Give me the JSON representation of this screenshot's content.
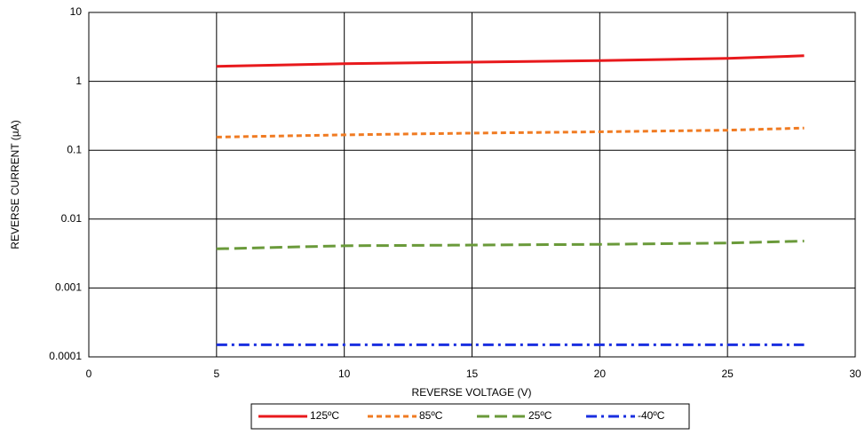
{
  "chart_data": {
    "type": "line",
    "xlabel": "REVERSE VOLTAGE (V)",
    "ylabel": "REVERSE CURRENT (µA)",
    "x": [
      5,
      10,
      15,
      20,
      25,
      28
    ],
    "series": [
      {
        "name": "125ºC",
        "color": "#e8191c",
        "dash": "solid",
        "values": [
          1.65,
          1.8,
          1.9,
          2.0,
          2.15,
          2.35
        ]
      },
      {
        "name": "85ºC",
        "color": "#f07b22",
        "dash": "short",
        "values": [
          0.155,
          0.167,
          0.177,
          0.185,
          0.195,
          0.21
        ]
      },
      {
        "name": "25ºC",
        "color": "#6a9a3a",
        "dash": "long",
        "values": [
          0.0037,
          0.0041,
          0.0042,
          0.0043,
          0.0045,
          0.0048
        ]
      },
      {
        "name": "-40ºC",
        "color": "#1a2fe0",
        "dash": "dashdot",
        "values": [
          0.00015,
          0.00015,
          0.00015,
          0.00015,
          0.00015,
          0.00015
        ]
      }
    ],
    "xlim": [
      0,
      30
    ],
    "xticks": [
      0,
      5,
      10,
      15,
      20,
      25,
      30
    ],
    "ylim": [
      0.0001,
      10
    ],
    "yticks": [
      0.0001,
      0.001,
      0.01,
      0.1,
      1,
      10
    ],
    "ylog": true,
    "grid": true,
    "legend": "bottom"
  }
}
